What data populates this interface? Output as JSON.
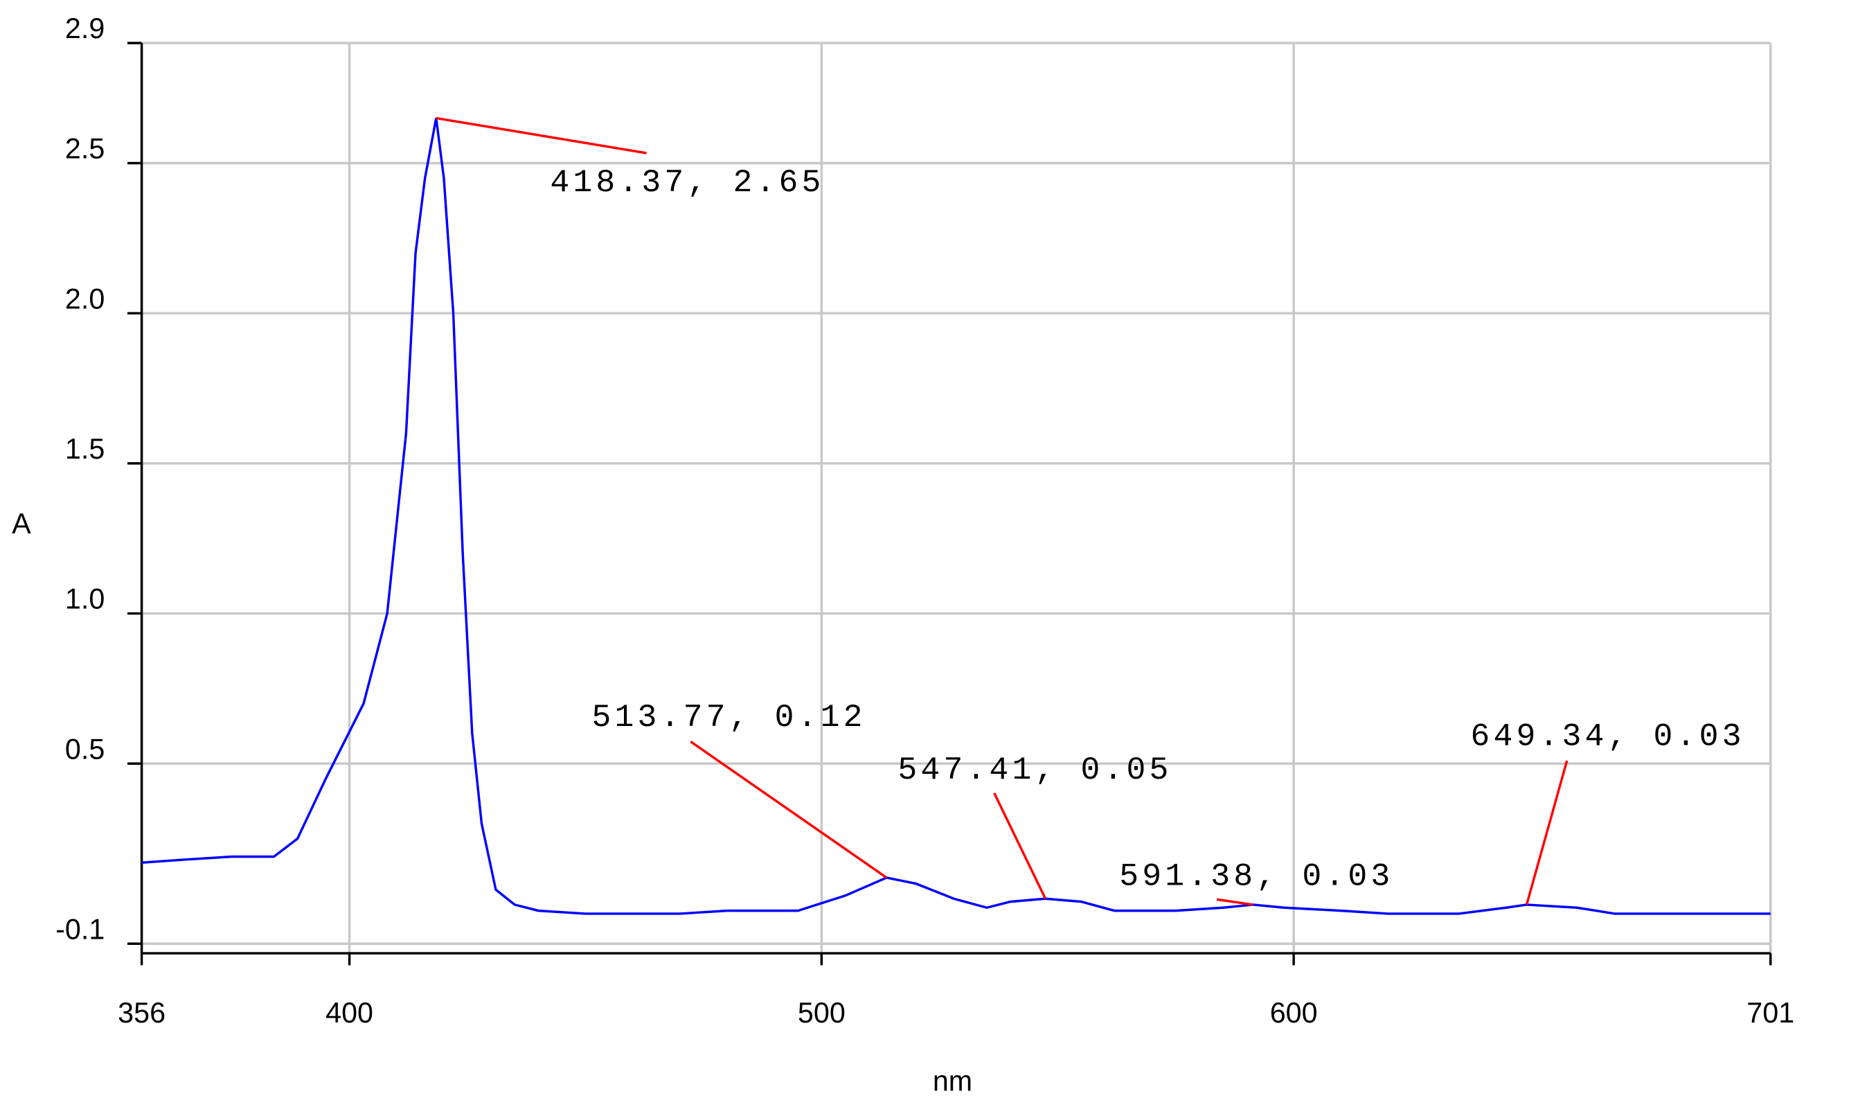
{
  "chart_data": {
    "type": "line",
    "x_label": "nm",
    "y_label": "A",
    "xlim": [
      356,
      701
    ],
    "xticks": [
      356,
      400,
      500,
      600,
      701
    ],
    "ylim": [
      -0.1,
      2.9
    ],
    "yticks": [
      -0.1,
      0.5,
      {
        "value": 1,
        "label": "1.0"
      },
      1.5,
      {
        "value": 2,
        "label": "2.0"
      },
      2.5,
      2.9
    ],
    "grid": true,
    "x": [
      356,
      365,
      375,
      384,
      389,
      395,
      403,
      408,
      412,
      414,
      416,
      418.37,
      420,
      422,
      424,
      426,
      428,
      431,
      435,
      440,
      450,
      470,
      480,
      495,
      505,
      513.77,
      520,
      528,
      535,
      540,
      547.41,
      555,
      562,
      575,
      585,
      591.38,
      598,
      610,
      620,
      635,
      645,
      649.34,
      660,
      668,
      701
    ],
    "series": [
      {
        "name": "A",
        "color": "#0000ff",
        "values": [
          0.17,
          0.18,
          0.19,
          0.19,
          0.25,
          0.45,
          0.7,
          1.0,
          1.6,
          2.2,
          2.45,
          2.65,
          2.45,
          2.0,
          1.2,
          0.6,
          0.3,
          0.08,
          0.03,
          0.01,
          0.0,
          0.0,
          0.01,
          0.01,
          0.06,
          0.12,
          0.1,
          0.05,
          0.02,
          0.04,
          0.05,
          0.04,
          0.01,
          0.01,
          0.02,
          0.03,
          0.02,
          0.01,
          0.0,
          0.0,
          0.02,
          0.03,
          0.02,
          0.0,
          0.0
        ]
      }
    ],
    "annotations": [
      {
        "x": 418.37,
        "y": 2.65,
        "label": "418.37, 2.65"
      },
      {
        "x": 513.77,
        "y": 0.12,
        "label": "513.77, 0.12"
      },
      {
        "x": 547.41,
        "y": 0.05,
        "label": "547.41, 0.05"
      },
      {
        "x": 591.38,
        "y": 0.03,
        "label": "591.38, 0.03"
      },
      {
        "x": 649.34,
        "y": 0.03,
        "label": "649.34, 0.03"
      }
    ]
  }
}
